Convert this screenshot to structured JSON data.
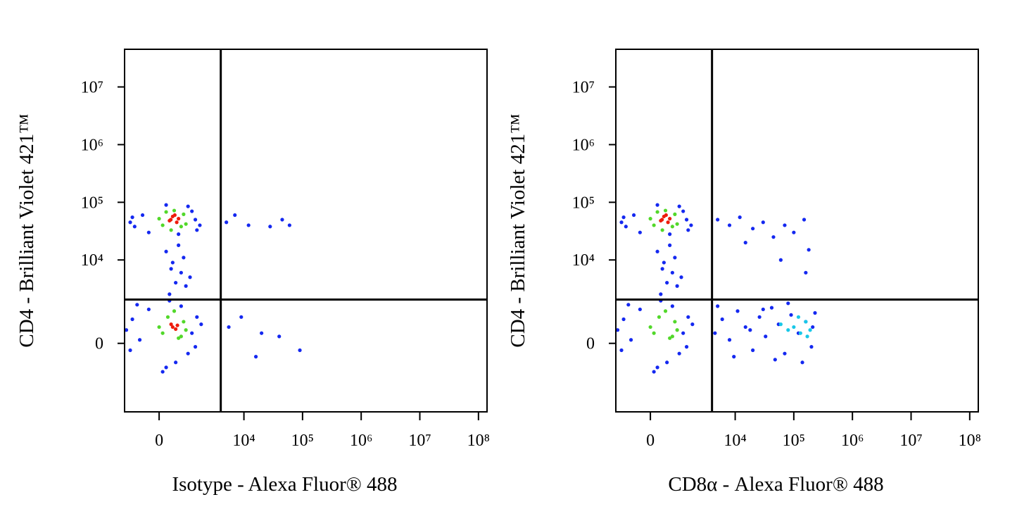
{
  "chart_data": [
    {
      "type": "scatter",
      "xscale": "biexponential",
      "yscale": "biexponential",
      "xlabel": "Isotype - Alexa Fluor® 488",
      "ylabel": "CD4 - Brilliant Violet 421™",
      "xlim": [
        -1300,
        140000000
      ],
      "ylim": [
        -5500,
        45000000
      ],
      "xticks": [
        0,
        {
          "value": 10000,
          "label": "10⁴"
        },
        {
          "value": 100000,
          "label": "10⁵"
        },
        {
          "value": 1000000,
          "label": "10⁶"
        },
        {
          "value": 10000000,
          "label": "10⁷"
        },
        {
          "value": 100000000,
          "label": "10⁸"
        }
      ],
      "yticks": [
        0,
        {
          "value": 10000,
          "label": "10⁴"
        },
        {
          "value": 100000,
          "label": "10⁵"
        },
        {
          "value": 1000000,
          "label": "10⁶"
        },
        {
          "value": 10000000,
          "label": "10⁷"
        }
      ],
      "gate": {
        "x": 4000,
        "y": 2000
      },
      "series": [
        {
          "color": "#1428f0",
          "x": [
            -1000,
            -800,
            -500,
            1400,
            1700,
            1200,
            -300,
            200,
            600,
            1000,
            -900,
            1500,
            300,
            500,
            700,
            400,
            900,
            200,
            600,
            1100,
            350,
            800,
            -1200,
            -900,
            -600,
            -300,
            1200,
            1500,
            1800,
            1000,
            200,
            500,
            -700,
            1400,
            300,
            700,
            -1000,
            100,
            5000,
            7000,
            12000,
            45000,
            60000,
            28000,
            5500,
            9000,
            20000,
            40000,
            90000,
            16000
          ],
          "y": [
            45000,
            38000,
            60000,
            50000,
            40000,
            70000,
            30000,
            90000,
            28000,
            85000,
            55000,
            33000,
            2500,
            4000,
            6000,
            9000,
            3500,
            14000,
            18000,
            5000,
            7000,
            11000,
            400,
            800,
            100,
            1300,
            300,
            900,
            600,
            -300,
            -800,
            -600,
            1600,
            -100,
            1900,
            1500,
            -200,
            -1000,
            45000,
            60000,
            40000,
            50000,
            40000,
            38000,
            500,
            900,
            300,
            200,
            -200,
            -400
          ]
        },
        {
          "color": "#52d82a",
          "x": [
            100,
            800,
            200,
            900,
            0,
            700,
            450,
            350,
            100,
            800,
            250,
            700,
            0,
            900,
            450,
            600
          ],
          "y": [
            40000,
            62000,
            68000,
            42000,
            52000,
            38000,
            72000,
            33000,
            300,
            700,
            900,
            200,
            500,
            400,
            1200,
            150
          ]
        },
        {
          "color": "#ee1c0c",
          "x": [
            340,
            536,
            400,
            600,
            300,
            470,
            400,
            500,
            350,
            560
          ],
          "y": [
            50000,
            45000,
            56900,
            52000,
            48000,
            60000,
            500,
            430,
            600,
            560
          ]
        }
      ]
    },
    {
      "type": "scatter",
      "xscale": "biexponential",
      "yscale": "biexponential",
      "xlabel": "CD8α - Alexa Fluor® 488",
      "ylabel": "CD4 - Brilliant Violet 421™",
      "xlim": [
        -1300,
        140000000
      ],
      "ylim": [
        -5500,
        45000000
      ],
      "xticks": [
        0,
        {
          "value": 10000,
          "label": "10⁴"
        },
        {
          "value": 100000,
          "label": "10⁵"
        },
        {
          "value": 1000000,
          "label": "10⁶"
        },
        {
          "value": 10000000,
          "label": "10⁷"
        },
        {
          "value": 100000000,
          "label": "10⁸"
        }
      ],
      "yticks": [
        0,
        {
          "value": 10000,
          "label": "10⁴"
        },
        {
          "value": 100000,
          "label": "10⁵"
        },
        {
          "value": 1000000,
          "label": "10⁶"
        },
        {
          "value": 10000000,
          "label": "10⁷"
        }
      ],
      "gate": {
        "x": 4000,
        "y": 2000
      },
      "series": [
        {
          "color": "#1428f0",
          "x": [
            -1000,
            -800,
            -500,
            1400,
            1700,
            1200,
            -300,
            200,
            600,
            1000,
            -900,
            1500,
            300,
            500,
            700,
            400,
            900,
            200,
            600,
            1100,
            350,
            800,
            -1200,
            -900,
            -600,
            -300,
            1200,
            1500,
            1800,
            1000,
            200,
            500,
            -700,
            1400,
            300,
            700,
            -1000,
            100,
            4500,
            6000,
            8000,
            11000,
            15000,
            20000,
            26000,
            33000,
            42000,
            55000,
            70000,
            90000,
            120000,
            160000,
            200000,
            230000,
            5000,
            9500,
            18000,
            30000,
            48000,
            80000,
            140000,
            210000,
            5000,
            8000,
            12000,
            20000,
            30000,
            45000,
            70000,
            100000,
            150000,
            180000,
            160000,
            15000,
            60000
          ],
          "y": [
            45000,
            38000,
            60000,
            50000,
            40000,
            70000,
            30000,
            90000,
            28000,
            85000,
            55000,
            33000,
            2500,
            4000,
            6000,
            9000,
            3500,
            14000,
            18000,
            5000,
            7000,
            11000,
            400,
            800,
            100,
            1300,
            300,
            900,
            600,
            -300,
            -800,
            -600,
            1600,
            -100,
            1900,
            1500,
            -200,
            -1000,
            300,
            800,
            100,
            1200,
            500,
            -200,
            900,
            200,
            1400,
            600,
            -300,
            1000,
            300,
            700,
            -100,
            1100,
            1500,
            -400,
            400,
            1300,
            -500,
            1700,
            -600,
            500,
            50000,
            40000,
            55000,
            35000,
            45000,
            25000,
            40000,
            30000,
            50000,
            15000,
            6000,
            20000,
            10000
          ]
        },
        {
          "color": "#18c8e8",
          "x": [
            100000,
            130000,
            160000,
            190000,
            120000,
            170000,
            60000,
            80000
          ],
          "y": [
            500,
            300,
            700,
            400,
            900,
            200,
            600,
            400
          ]
        },
        {
          "color": "#52d82a",
          "x": [
            100,
            800,
            200,
            900,
            0,
            700,
            450,
            350,
            100,
            800,
            250,
            700,
            0,
            900,
            450,
            600
          ],
          "y": [
            40000,
            62000,
            68000,
            42000,
            52000,
            38000,
            72000,
            33000,
            300,
            700,
            900,
            200,
            500,
            400,
            1200,
            150
          ]
        },
        {
          "color": "#ee1c0c",
          "x": [
            340,
            536,
            400,
            600,
            300,
            470
          ],
          "y": [
            50000,
            45000,
            56900,
            52000,
            48000,
            60000
          ]
        }
      ]
    }
  ]
}
